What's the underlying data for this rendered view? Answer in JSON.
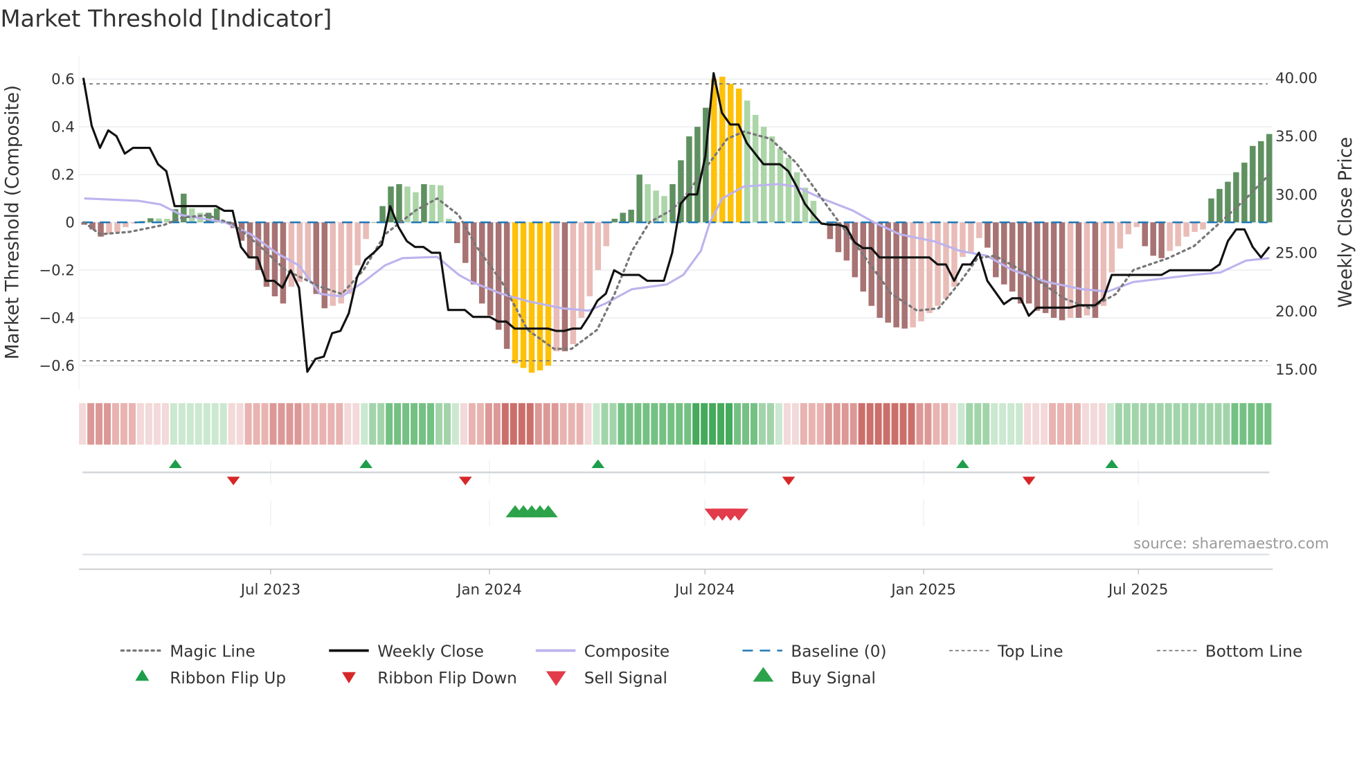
{
  "chart_data": {
    "type": "bar",
    "title": "Market Threshold [Indicator]",
    "ylabel": "Market Threshold (Composite)",
    "ylabel_right": "Weekly Close Price",
    "ylim": [
      -0.7,
      0.7
    ],
    "ylim_right": [
      13.5,
      41.5
    ],
    "yticks": [
      "0.6",
      "0.4",
      "0.2",
      "0",
      "−0.2",
      "−0.4",
      "−0.6"
    ],
    "ytick_values": [
      0.6,
      0.4,
      0.2,
      0,
      -0.2,
      -0.4,
      -0.6
    ],
    "yticks_right": [
      "40.00",
      "35.00",
      "30.00",
      "25.00",
      "20.00",
      "15.00"
    ],
    "ytick_right_values": [
      40,
      35,
      30,
      25,
      20,
      15
    ],
    "xticks": [
      "Jul 2023",
      "Jan 2024",
      "Jul 2024",
      "Jan 2025",
      "Jul 2025"
    ],
    "xtick_weeks": [
      22.5,
      48.9,
      74.9,
      101.3,
      127.2
    ],
    "x_unit": "week index (weekly bars, ~Feb 2023 to Oct 2025)",
    "top_line": 0.58,
    "bottom_line": -0.58,
    "baseline": 0,
    "extreme_threshold": 0.55,
    "histogram": [
      -0.01,
      -0.03,
      -0.06,
      -0.05,
      -0.04,
      -0.02,
      -0.005,
      0.005,
      0.017,
      0.016,
      0.015,
      0.055,
      0.12,
      0.058,
      0.04,
      0.04,
      0.058,
      0.003,
      -0.024,
      -0.077,
      -0.15,
      -0.2,
      -0.27,
      -0.31,
      -0.34,
      -0.27,
      -0.25,
      -0.24,
      -0.3,
      -0.36,
      -0.35,
      -0.34,
      -0.3,
      -0.18,
      -0.07,
      0.0,
      0.068,
      0.15,
      0.16,
      0.15,
      0.126,
      0.16,
      0.157,
      0.155,
      0.015,
      -0.087,
      -0.17,
      -0.26,
      -0.34,
      -0.39,
      -0.45,
      -0.53,
      -0.59,
      -0.61,
      -0.63,
      -0.62,
      -0.6,
      -0.54,
      -0.54,
      -0.51,
      -0.4,
      -0.31,
      -0.2,
      -0.1,
      0.015,
      0.04,
      0.053,
      0.2,
      0.16,
      0.133,
      0.11,
      0.16,
      0.26,
      0.36,
      0.4,
      0.48,
      0.6,
      0.61,
      0.58,
      0.56,
      0.51,
      0.45,
      0.4,
      0.36,
      0.31,
      0.27,
      0.21,
      0.145,
      0.09,
      0.0,
      -0.07,
      -0.125,
      -0.16,
      -0.23,
      -0.29,
      -0.35,
      -0.4,
      -0.42,
      -0.44,
      -0.445,
      -0.44,
      -0.415,
      -0.38,
      -0.35,
      -0.32,
      -0.27,
      -0.145,
      -0.125,
      -0.066,
      -0.106,
      -0.23,
      -0.26,
      -0.29,
      -0.34,
      -0.34,
      -0.37,
      -0.38,
      -0.4,
      -0.41,
      -0.4,
      -0.4,
      -0.39,
      -0.4,
      -0.35,
      -0.21,
      -0.11,
      -0.05,
      -0.02,
      -0.1,
      -0.14,
      -0.15,
      -0.12,
      -0.1,
      -0.06,
      -0.04,
      -0.03,
      0.1,
      0.14,
      0.17,
      0.21,
      0.25,
      0.32,
      0.34,
      0.37
    ],
    "weekly_close": [
      40,
      35.9,
      34,
      35.5,
      35,
      33.5,
      34,
      34,
      34,
      32.6,
      32,
      29,
      29,
      29,
      29,
      29,
      29,
      28.6,
      28.6,
      25.5,
      24.6,
      24.6,
      22.6,
      22.6,
      22,
      23.5,
      22,
      14.8,
      15.9,
      16.1,
      18.1,
      18.3,
      19.8,
      22.9,
      24.4,
      25,
      25.7,
      29,
      27.2,
      26,
      25.5,
      25.5,
      25,
      25,
      20.1,
      20.1,
      20.1,
      19.5,
      19.5,
      19.5,
      19.1,
      19.1,
      18.5,
      18.5,
      18.5,
      18.5,
      18.5,
      18.3,
      18.3,
      18.5,
      18.5,
      19.6,
      20.9,
      21.5,
      23.5,
      23.1,
      23.1,
      23.1,
      22.6,
      22.6,
      22.6,
      25,
      29.2,
      30,
      30,
      33.3,
      40.4,
      37,
      36,
      36,
      34.4,
      33.5,
      32.6,
      32.6,
      32.6,
      32,
      30.7,
      29.2,
      28.3,
      27.5,
      27.4,
      27.4,
      27.2,
      25.9,
      25.4,
      25.4,
      24.6,
      24.6,
      24.6,
      24.6,
      24.6,
      24.6,
      24.6,
      24,
      24,
      22.6,
      24,
      24,
      25,
      22.6,
      21.6,
      20.6,
      21.1,
      21.1,
      19.6,
      20.3,
      20.3,
      20.3,
      20.3,
      20.3,
      20.5,
      20.5,
      20.5,
      21.1,
      23.1,
      23.1,
      23.1,
      23.1,
      23.1,
      23.1,
      23.1,
      23.5,
      23.5,
      23.5,
      23.5,
      23.5,
      23.5,
      24,
      26,
      27,
      27,
      25.5,
      24.6,
      25.5
    ],
    "composite": [
      [
        0,
        0.1
      ],
      [
        6.6,
        0.09
      ],
      [
        9.2,
        0.075
      ],
      [
        11.8,
        0.03
      ],
      [
        17,
        0.0
      ],
      [
        20.1,
        -0.05
      ],
      [
        23.3,
        -0.13
      ],
      [
        25.9,
        -0.18
      ],
      [
        28.5,
        -0.3
      ],
      [
        31.1,
        -0.31
      ],
      [
        33.7,
        -0.25
      ],
      [
        36.3,
        -0.18
      ],
      [
        38.4,
        -0.15
      ],
      [
        42.6,
        -0.145
      ],
      [
        45.2,
        -0.22
      ],
      [
        46.8,
        -0.25
      ],
      [
        50.4,
        -0.3
      ],
      [
        53.5,
        -0.33
      ],
      [
        57.7,
        -0.36
      ],
      [
        60.9,
        -0.37
      ],
      [
        62.9,
        -0.34
      ],
      [
        66.1,
        -0.28
      ],
      [
        70.3,
        -0.26
      ],
      [
        72.3,
        -0.22
      ],
      [
        74.4,
        -0.12
      ],
      [
        75.5,
        0.0
      ],
      [
        77,
        0.1
      ],
      [
        79.6,
        0.15
      ],
      [
        83.8,
        0.16
      ],
      [
        85.9,
        0.15
      ],
      [
        89,
        0.1
      ],
      [
        92.7,
        0.05
      ],
      [
        95.3,
        0.0
      ],
      [
        98.4,
        -0.05
      ],
      [
        102.6,
        -0.08
      ],
      [
        105.7,
        -0.12
      ],
      [
        108.9,
        -0.14
      ],
      [
        112,
        -0.2
      ],
      [
        116.2,
        -0.25
      ],
      [
        120.4,
        -0.28
      ],
      [
        123.5,
        -0.29
      ],
      [
        126.6,
        -0.25
      ],
      [
        133.9,
        -0.22
      ],
      [
        137.1,
        -0.21
      ],
      [
        140.2,
        -0.16
      ],
      [
        143,
        -0.15
      ]
    ],
    "magic_line": [
      [
        0,
        0
      ],
      [
        1.9,
        -0.05
      ],
      [
        5.5,
        -0.04
      ],
      [
        9.7,
        -0.01
      ],
      [
        11.8,
        0.02
      ],
      [
        14.9,
        0.03
      ],
      [
        18.1,
        -0.01
      ],
      [
        21.2,
        -0.1
      ],
      [
        24.3,
        -0.2
      ],
      [
        28.5,
        -0.27
      ],
      [
        31.1,
        -0.3
      ],
      [
        33.7,
        -0.2
      ],
      [
        36.3,
        -0.05
      ],
      [
        40,
        0.05
      ],
      [
        42.6,
        0.1
      ],
      [
        45.2,
        0.03
      ],
      [
        47.3,
        -0.1
      ],
      [
        50.4,
        -0.25
      ],
      [
        53.5,
        -0.45
      ],
      [
        56.7,
        -0.53
      ],
      [
        58.8,
        -0.53
      ],
      [
        61.9,
        -0.45
      ],
      [
        64,
        -0.3
      ],
      [
        66.1,
        -0.12
      ],
      [
        68.2,
        0
      ],
      [
        70.8,
        0.05
      ],
      [
        72.3,
        0.1
      ],
      [
        74.4,
        0.2
      ],
      [
        77.6,
        0.35
      ],
      [
        79.6,
        0.38
      ],
      [
        82.8,
        0.35
      ],
      [
        85.9,
        0.25
      ],
      [
        89,
        0.1
      ],
      [
        91.1,
        0
      ],
      [
        94.3,
        -0.15
      ],
      [
        97.4,
        -0.3
      ],
      [
        100.5,
        -0.37
      ],
      [
        103.1,
        -0.36
      ],
      [
        105.7,
        -0.25
      ],
      [
        107.8,
        -0.15
      ],
      [
        109.9,
        -0.14
      ],
      [
        114.1,
        -0.22
      ],
      [
        118.3,
        -0.32
      ],
      [
        121.4,
        -0.36
      ],
      [
        124.5,
        -0.3
      ],
      [
        126.6,
        -0.2
      ],
      [
        130.8,
        -0.15
      ],
      [
        133.9,
        -0.1
      ],
      [
        137.1,
        0
      ],
      [
        140.2,
        0.1
      ],
      [
        143,
        0.2
      ]
    ],
    "ribbon_strength": [
      -1,
      -3,
      -3,
      -3,
      -2,
      -2,
      -2,
      -1,
      -1,
      -1,
      -1,
      1,
      1,
      1,
      1,
      1,
      1,
      1,
      -1,
      -1,
      -2,
      -2,
      -2,
      -3,
      -3,
      -3,
      -3,
      -2,
      -2,
      -2,
      -2,
      -2,
      -1,
      -1,
      1,
      2,
      2,
      3,
      3,
      3,
      3,
      3,
      3,
      2,
      2,
      1,
      -1,
      -2,
      -2,
      -3,
      -3,
      -4,
      -4,
      -4,
      -4,
      -3,
      -3,
      -3,
      -2,
      -2,
      -2,
      -1,
      1,
      2,
      2,
      3,
      3,
      3,
      3,
      3,
      3,
      3,
      3,
      3,
      4,
      4,
      4,
      4,
      4,
      3,
      3,
      3,
      2,
      2,
      1,
      -1,
      -1,
      -2,
      -2,
      -2,
      -3,
      -3,
      -3,
      -3,
      -4,
      -4,
      -4,
      -4,
      -4,
      -4,
      -4,
      -3,
      -3,
      -2,
      -2,
      -1,
      1,
      2,
      2,
      2,
      1,
      1,
      1,
      1,
      -1,
      -1,
      -1,
      -2,
      -2,
      -2,
      -2,
      -1,
      -1,
      -1,
      1,
      2,
      2,
      2,
      2,
      2,
      2,
      2,
      2,
      2,
      2,
      2,
      2,
      2,
      2,
      3,
      3,
      3,
      3,
      3
    ],
    "ribbon_flip_up": [
      11,
      34,
      62,
      106,
      124
    ],
    "ribbon_flip_down": [
      18,
      46,
      85,
      114
    ],
    "buy_signal": [
      52,
      53,
      54,
      55,
      56
    ],
    "sell_signal": [
      76,
      77,
      78,
      79
    ],
    "colors": {
      "bull_rising": "#5f9160",
      "bull_falling": "#acd5a8",
      "bear_falling": "#a87373",
      "bear_rising": "#e9bcb8",
      "extreme": "#ffc107",
      "weekly_close": "#111111",
      "composite": "#bdb3ee",
      "magic_line": "#777777",
      "baseline": "#1f77b4",
      "flip_up": "#1e9e4a",
      "flip_down": "#d62728",
      "buy": "#2ca34a",
      "sell": "#e23b4a"
    },
    "legend": [
      {
        "label": "Magic Line",
        "key": "magic"
      },
      {
        "label": "Weekly Close",
        "key": "close"
      },
      {
        "label": "Composite",
        "key": "composite"
      },
      {
        "label": "Baseline (0)",
        "key": "baseline"
      },
      {
        "label": "Top Line",
        "key": "top"
      },
      {
        "label": "Bottom Line",
        "key": "bottom"
      },
      {
        "label": "Ribbon Flip Up",
        "key": "flipup"
      },
      {
        "label": "Ribbon Flip Down",
        "key": "flipdown"
      },
      {
        "label": "Sell Signal",
        "key": "sell"
      },
      {
        "label": "Buy Signal",
        "key": "buy"
      }
    ],
    "legend_placement": "bottom",
    "source": "source: sharemaestro.com"
  }
}
